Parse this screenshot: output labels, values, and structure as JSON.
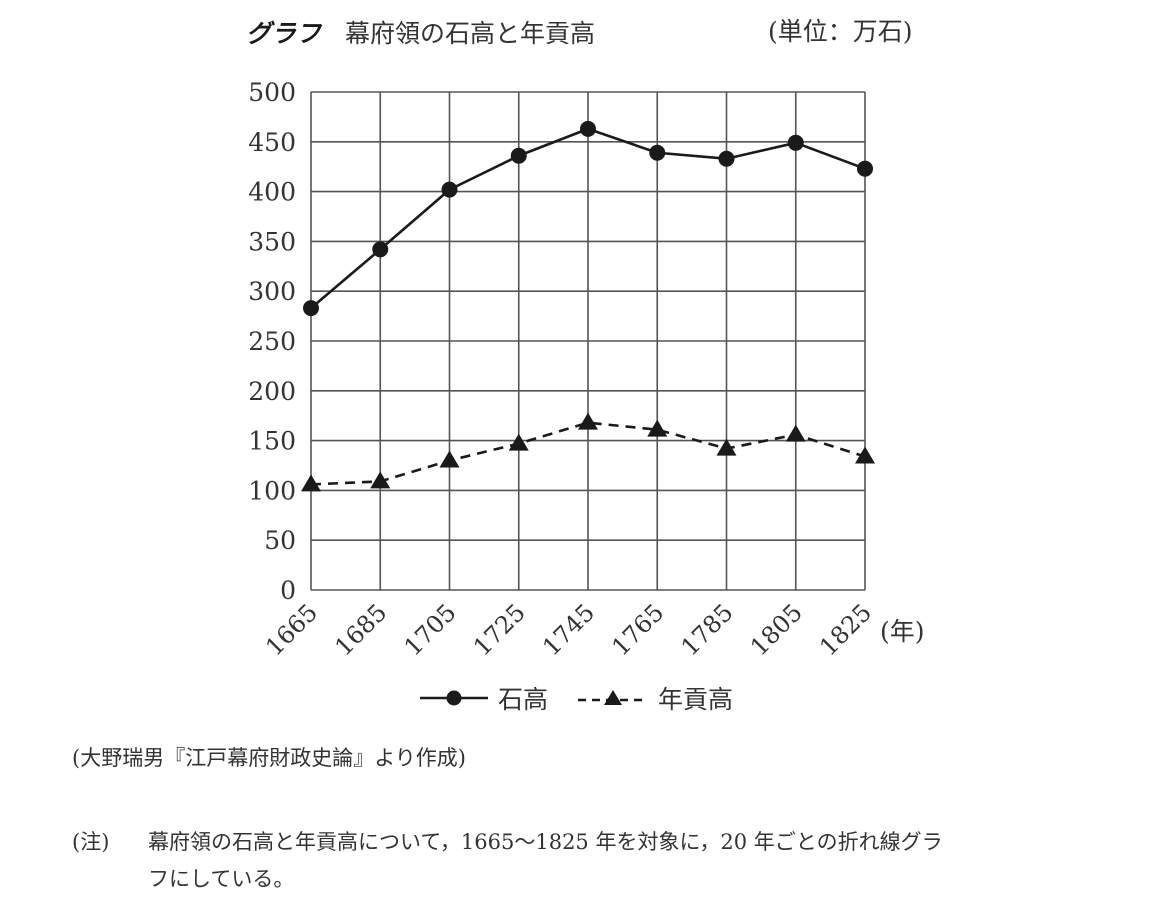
{
  "header": {
    "label": "グラフ",
    "title": "幕府領の石高と年貢高",
    "unit": "(単位：万石)"
  },
  "legend": {
    "items": [
      {
        "name": "石高",
        "style": "solid",
        "marker": "circle"
      },
      {
        "name": "年貢高",
        "style": "dashed",
        "marker": "triangle"
      }
    ]
  },
  "source": "(大野瑞男『江戸幕府財政史論』より作成)",
  "note": {
    "prefix": "(注)",
    "line1": "幕府領の石高と年貢高について，1665～1825 年を対象に，20 年ごとの折れ線グラ",
    "line2": "フにしている。"
  },
  "chart_data": {
    "type": "line",
    "title": "幕府領の石高と年貢高",
    "unit": "単位：万石",
    "xlabel": "(年)",
    "ylabel": "",
    "categories": [
      "1665",
      "1685",
      "1705",
      "1725",
      "1745",
      "1765",
      "1785",
      "1805",
      "1825"
    ],
    "series": [
      {
        "name": "石高",
        "line": "solid",
        "marker": "circle",
        "values": [
          283,
          342,
          402,
          436,
          463,
          439,
          433,
          449,
          423
        ]
      },
      {
        "name": "年貢高",
        "line": "dashed",
        "marker": "triangle",
        "values": [
          106,
          109,
          130,
          147,
          168,
          161,
          142,
          156,
          134
        ]
      }
    ],
    "ylim": [
      0,
      500
    ],
    "yticks": [
      0,
      50,
      100,
      150,
      200,
      250,
      300,
      350,
      400,
      450,
      500
    ],
    "grid": true,
    "legend_position": "bottom",
    "x_tick_rotation": -45
  }
}
